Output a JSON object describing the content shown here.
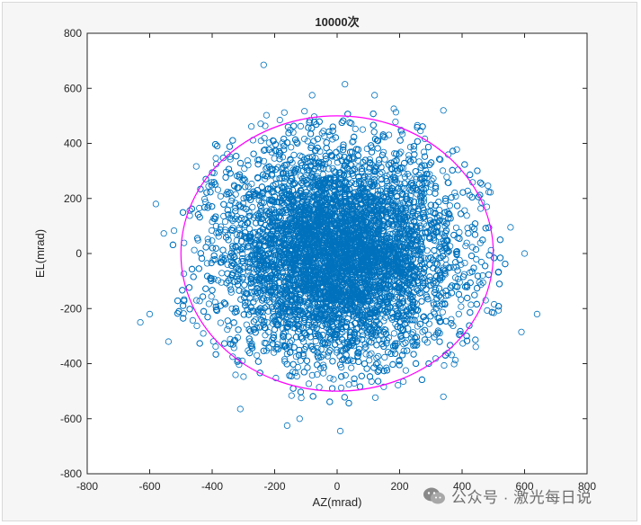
{
  "chart_data": {
    "type": "scatter",
    "title": "10000次",
    "xlabel": "AZ(mrad)",
    "ylabel": "EL(mrad)",
    "xlim": [
      -800,
      800
    ],
    "ylim": [
      -800,
      800
    ],
    "xticks": [
      "-800",
      "-600",
      "-400",
      "-200",
      "0",
      "200",
      "400",
      "600",
      "800"
    ],
    "yticks": [
      "800",
      "600",
      "400",
      "200",
      "0",
      "-200",
      "-400",
      "-600",
      "-800"
    ],
    "marker": "circle-open",
    "point_color": "#0072BD",
    "n_points": 10000,
    "center": [
      0,
      0
    ],
    "approx_std_mrad": 185,
    "reference_circle": {
      "center": [
        0,
        0
      ],
      "radius": 500,
      "color": "#FF00FF"
    },
    "visible_outliers": [
      {
        "x": -235,
        "y": 685
      },
      {
        "x": 25,
        "y": 615
      },
      {
        "x": -600,
        "y": -220
      },
      {
        "x": -630,
        "y": -250
      },
      {
        "x": -540,
        "y": -320
      },
      {
        "x": 640,
        "y": -220
      },
      {
        "x": 590,
        "y": -285
      },
      {
        "x": 10,
        "y": -645
      },
      {
        "x": -160,
        "y": -625
      },
      {
        "x": -120,
        "y": -600
      },
      {
        "x": -580,
        "y": 180
      },
      {
        "x": 340,
        "y": 520
      },
      {
        "x": 120,
        "y": 575
      },
      {
        "x": -80,
        "y": 575
      },
      {
        "x": 600,
        "y": 0
      },
      {
        "x": 555,
        "y": 95
      },
      {
        "x": 340,
        "y": -520
      },
      {
        "x": -310,
        "y": -565
      }
    ],
    "grid": false,
    "legend": "none"
  },
  "watermark": {
    "text": "公众号 · 激光每日说",
    "icon": "wechat-icon"
  }
}
